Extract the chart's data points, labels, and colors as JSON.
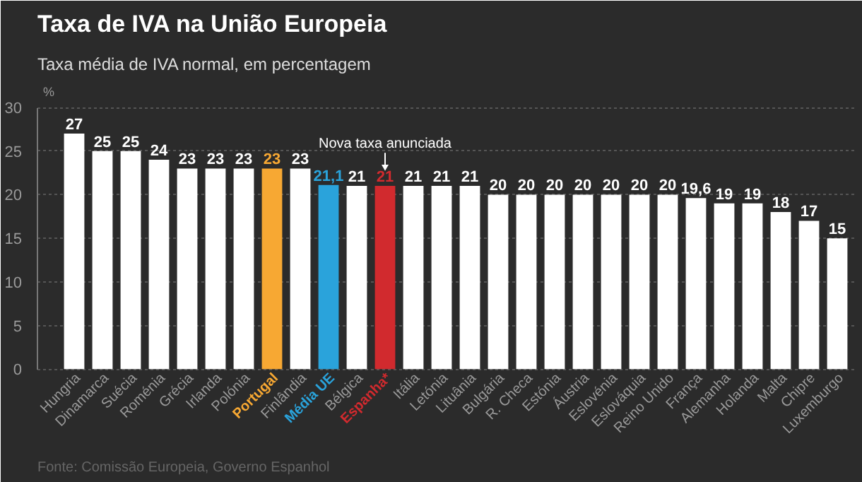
{
  "chart_data": {
    "type": "bar",
    "title": "Taxa de IVA na União Europeia",
    "subtitle": "Taxa média de IVA normal, em percentagem",
    "ylabel": "%",
    "categories": [
      "Hungria",
      "Dinamarca",
      "Suécia",
      "Roménia",
      "Grécia",
      "Irlanda",
      "Polónia",
      "Portugal",
      "Finlândia",
      "Média UE",
      "Bélgica",
      "Espanha*",
      "Itália",
      "Letónia",
      "Lituânia",
      "Bulgária",
      "R. Checa",
      "Estónia",
      "Áustria",
      "Eslovénia",
      "Eslováquia",
      "Reino Unido",
      "França",
      "Alemanha",
      "Holanda",
      "Malta",
      "Chipre",
      "Luxemburgo"
    ],
    "values": [
      27,
      25,
      25,
      24,
      23,
      23,
      23,
      23,
      23,
      21.1,
      21,
      21,
      21,
      21,
      21,
      20,
      20,
      20,
      20,
      20,
      20,
      20,
      19.6,
      19,
      19,
      18,
      17,
      15
    ],
    "value_labels": [
      "27",
      "25",
      "25",
      "24",
      "23",
      "23",
      "23",
      "23",
      "23",
      "21,1",
      "21",
      "21",
      "21",
      "21",
      "21",
      "20",
      "20",
      "20",
      "20",
      "20",
      "20",
      "20",
      "19,6",
      "19",
      "19",
      "18",
      "17",
      "15"
    ],
    "colors": [
      "#ffffff",
      "#ffffff",
      "#ffffff",
      "#ffffff",
      "#ffffff",
      "#ffffff",
      "#ffffff",
      "#f7a833",
      "#ffffff",
      "#2aa3db",
      "#ffffff",
      "#d12a2e",
      "#ffffff",
      "#ffffff",
      "#ffffff",
      "#ffffff",
      "#ffffff",
      "#ffffff",
      "#ffffff",
      "#ffffff",
      "#ffffff",
      "#ffffff",
      "#ffffff",
      "#ffffff",
      "#ffffff",
      "#ffffff",
      "#ffffff",
      "#ffffff"
    ],
    "ylim": [
      0,
      30
    ],
    "yticks": [
      0,
      5,
      10,
      15,
      20,
      25,
      30
    ],
    "grid": "y",
    "annotations": [
      {
        "text": "Nova taxa anunciada",
        "x": "Espanha*",
        "y": 21
      },
      "Fonte: Comissão Europeia, Governo Espanhol"
    ]
  }
}
